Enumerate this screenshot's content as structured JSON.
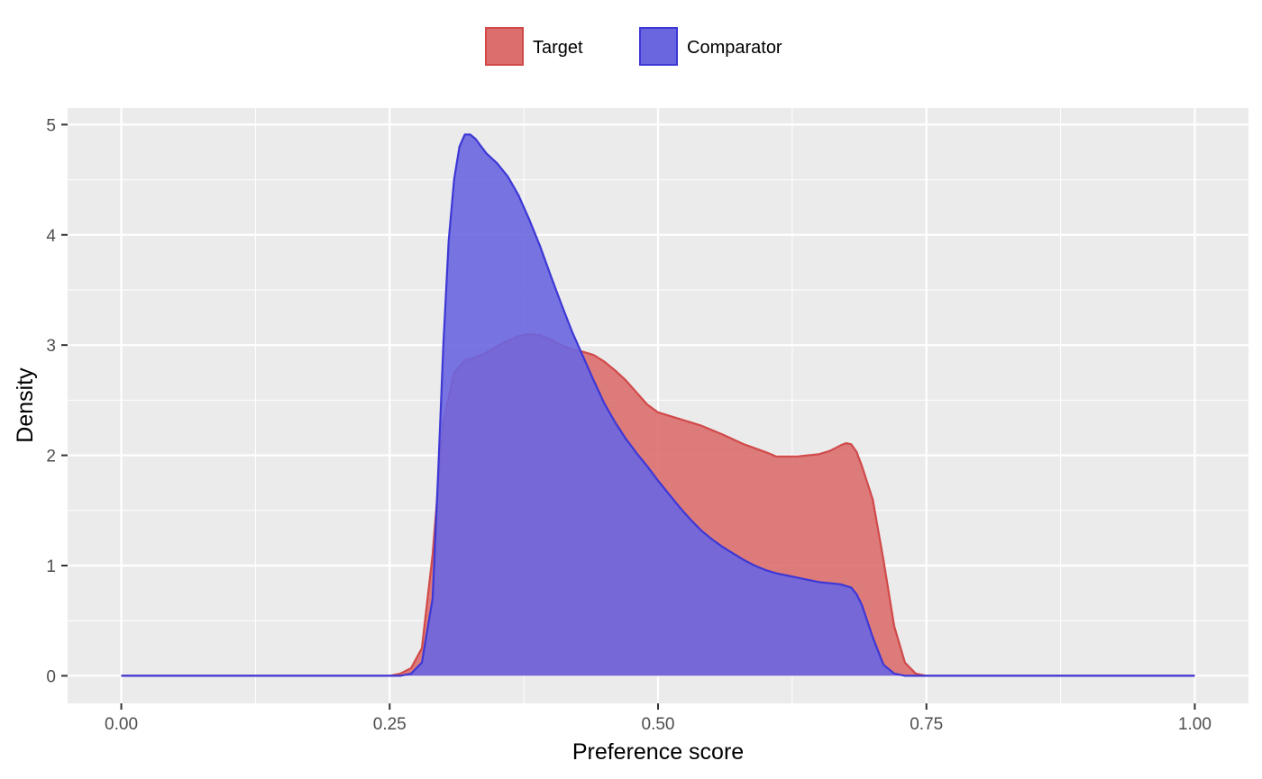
{
  "chart_data": {
    "type": "area",
    "title": "",
    "xlabel": "Preference score",
    "ylabel": "Density",
    "xlim": [
      -0.05,
      1.05
    ],
    "ylim": [
      -0.25,
      5.15
    ],
    "x_ticks": [
      0,
      0.25,
      0.5,
      0.75,
      1
    ],
    "x_tick_labels": [
      "0.00",
      "0.25",
      "0.50",
      "0.75",
      "1.00"
    ],
    "y_ticks": [
      0,
      1,
      2,
      3,
      4,
      5
    ],
    "y_tick_labels": [
      "0",
      "1",
      "2",
      "3",
      "4",
      "5"
    ],
    "x_minor_ticks": [
      0.125,
      0.375,
      0.625,
      0.875
    ],
    "y_minor_ticks": [
      0.5,
      1.5,
      2.5,
      3.5,
      4.5
    ],
    "grid": true,
    "legend_position": "top",
    "series": [
      {
        "name": "Target",
        "color": "#d14a4a",
        "fill": "#dc6e6e",
        "x": [
          0.0,
          0.25,
          0.26,
          0.27,
          0.28,
          0.29,
          0.3,
          0.31,
          0.32,
          0.33,
          0.34,
          0.35,
          0.36,
          0.37,
          0.38,
          0.39,
          0.4,
          0.41,
          0.42,
          0.43,
          0.44,
          0.45,
          0.46,
          0.47,
          0.48,
          0.49,
          0.5,
          0.52,
          0.54,
          0.56,
          0.58,
          0.6,
          0.61,
          0.62,
          0.63,
          0.64,
          0.65,
          0.66,
          0.67,
          0.675,
          0.68,
          0.685,
          0.69,
          0.7,
          0.71,
          0.72,
          0.73,
          0.74,
          0.75,
          1.0
        ],
        "y": [
          0,
          0,
          0.02,
          0.07,
          0.25,
          1.1,
          2.3,
          2.75,
          2.86,
          2.89,
          2.93,
          2.99,
          3.04,
          3.08,
          3.1,
          3.09,
          3.05,
          3.0,
          2.96,
          2.94,
          2.91,
          2.85,
          2.77,
          2.68,
          2.57,
          2.46,
          2.39,
          2.33,
          2.27,
          2.19,
          2.1,
          2.03,
          1.99,
          1.99,
          1.99,
          2.0,
          2.01,
          2.04,
          2.09,
          2.11,
          2.1,
          2.03,
          1.9,
          1.6,
          1.05,
          0.45,
          0.12,
          0.02,
          0,
          0
        ]
      },
      {
        "name": "Comparator",
        "color": "#3d38d6",
        "fill": "#6a66e0",
        "x": [
          0.0,
          0.26,
          0.27,
          0.28,
          0.29,
          0.295,
          0.3,
          0.305,
          0.31,
          0.315,
          0.32,
          0.325,
          0.33,
          0.34,
          0.35,
          0.36,
          0.37,
          0.38,
          0.39,
          0.4,
          0.41,
          0.42,
          0.43,
          0.44,
          0.45,
          0.46,
          0.47,
          0.48,
          0.49,
          0.5,
          0.51,
          0.52,
          0.53,
          0.54,
          0.55,
          0.56,
          0.57,
          0.58,
          0.59,
          0.6,
          0.61,
          0.62,
          0.63,
          0.64,
          0.65,
          0.66,
          0.67,
          0.68,
          0.685,
          0.69,
          0.7,
          0.71,
          0.72,
          0.73,
          0.74,
          1.0
        ],
        "y": [
          0,
          0,
          0.02,
          0.12,
          0.7,
          1.8,
          3.0,
          3.95,
          4.5,
          4.8,
          4.91,
          4.91,
          4.87,
          4.74,
          4.65,
          4.53,
          4.36,
          4.14,
          3.9,
          3.63,
          3.37,
          3.12,
          2.9,
          2.68,
          2.47,
          2.3,
          2.15,
          2.02,
          1.9,
          1.77,
          1.65,
          1.53,
          1.42,
          1.32,
          1.24,
          1.17,
          1.11,
          1.05,
          1.0,
          0.96,
          0.93,
          0.91,
          0.89,
          0.87,
          0.85,
          0.84,
          0.83,
          0.8,
          0.74,
          0.64,
          0.35,
          0.1,
          0.02,
          0,
          0,
          0
        ]
      }
    ]
  }
}
